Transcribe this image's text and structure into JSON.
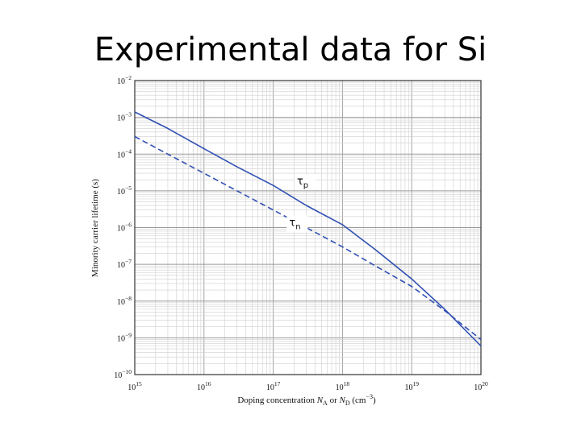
{
  "slide": {
    "title": "Experimental data for Si"
  },
  "colors": {
    "curve": "#2f4fb3",
    "grid_minor": "#cfcfcf",
    "grid_major": "#9a9a9a",
    "frame": "#333333"
  },
  "chart_data": {
    "type": "line",
    "title": "Experimental data for Si",
    "xscale": "log",
    "yscale": "log",
    "xlim": [
      1000000000000000.0,
      1e+20
    ],
    "ylim": [
      1e-10,
      0.01
    ],
    "xlabel": {
      "main": "Doping concentration ",
      "n_a": "N",
      "n_a_sub": "A",
      "mid": " or ",
      "n_d": "N",
      "n_d_sub": "D",
      "unit_open": " (cm",
      "unit_exp": "−3",
      "unit_close": ")"
    },
    "ylabel": "Minority carrier lifetime (s)",
    "x_ticks": [
      {
        "base": "10",
        "exp": "15",
        "value": 1000000000000000.0
      },
      {
        "base": "10",
        "exp": "16",
        "value": 1e+16
      },
      {
        "base": "10",
        "exp": "17",
        "value": 1e+17
      },
      {
        "base": "10",
        "exp": "18",
        "value": 1e+18
      },
      {
        "base": "10",
        "exp": "19",
        "value": 1e+19
      },
      {
        "base": "10",
        "exp": "20",
        "value": 1e+20
      }
    ],
    "y_ticks": [
      {
        "base": "10",
        "exp": "−10",
        "value": 1e-10
      },
      {
        "base": "10",
        "exp": "−9",
        "value": 1e-09
      },
      {
        "base": "10",
        "exp": "−8",
        "value": 1e-08
      },
      {
        "base": "10",
        "exp": "−7",
        "value": 1e-07
      },
      {
        "base": "10",
        "exp": "−6",
        "value": 1e-06
      },
      {
        "base": "10",
        "exp": "−5",
        "value": 1e-05
      },
      {
        "base": "10",
        "exp": "−4",
        "value": 0.0001
      },
      {
        "base": "10",
        "exp": "−3",
        "value": 0.001
      },
      {
        "base": "10",
        "exp": "−2",
        "value": 0.01
      }
    ],
    "series": [
      {
        "name": "τp",
        "label_main": "τ",
        "label_sub": "p",
        "style": "solid",
        "label_at": {
          "x": 2.2e+17,
          "y": 1.5e-05
        },
        "points": [
          [
            1000000000000000.0,
            0.0014
          ],
          [
            3000000000000000.0,
            0.0005
          ],
          [
            1e+16,
            0.00014
          ],
          [
            3e+16,
            4.5e-05
          ],
          [
            1e+17,
            1.4e-05
          ],
          [
            3e+17,
            4e-06
          ],
          [
            1e+18,
            1.2e-06
          ],
          [
            3e+18,
            2.5e-07
          ],
          [
            1e+19,
            4e-08
          ],
          [
            3e+19,
            6e-09
          ],
          [
            1e+20,
            6e-10
          ]
        ]
      },
      {
        "name": "τn",
        "label_main": "τ",
        "label_sub": "n",
        "style": "dashed",
        "label_at": {
          "x": 1.7e+17,
          "y": 1.1e-06
        },
        "points": [
          [
            1000000000000000.0,
            0.0003
          ],
          [
            3000000000000000.0,
            0.0001
          ],
          [
            1e+16,
            3e-05
          ],
          [
            3e+16,
            1e-05
          ],
          [
            1e+17,
            3e-06
          ],
          [
            3e+17,
            1e-06
          ],
          [
            1e+18,
            3e-07
          ],
          [
            3e+18,
            9e-08
          ],
          [
            1e+19,
            2.5e-08
          ],
          [
            3e+19,
            5.5e-09
          ],
          [
            1e+20,
            9e-10
          ]
        ]
      }
    ]
  }
}
